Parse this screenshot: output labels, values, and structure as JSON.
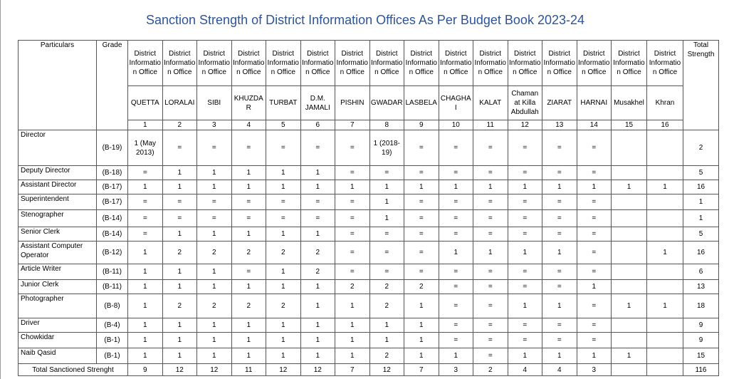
{
  "title": "Sanction Strength of District Information Offices As Per Budget Book 2023-24",
  "table": {
    "headers": {
      "particulars": "Particulars",
      "grade": "Grade",
      "total": "Total Strength",
      "offices": [
        {
          "office": "District Information Office",
          "district": "QUETTA",
          "number": 1
        },
        {
          "office": "District Information Office",
          "district": "LORALAI",
          "number": 2
        },
        {
          "office": "District Information Office",
          "district": "SIBI",
          "number": 3
        },
        {
          "office": "District Information Office",
          "district": "KHUZDAR",
          "number": 4
        },
        {
          "office": "District Information Office",
          "district": "TURBAT",
          "number": 5
        },
        {
          "office": "District Information Office",
          "district": "D.M. JAMALI",
          "number": 6
        },
        {
          "office": "District Information Office",
          "district": "PISHIN",
          "number": 7
        },
        {
          "office": "District Information Office",
          "district": "GWADAR",
          "number": 8
        },
        {
          "office": "District Information Office",
          "district": "LASBELA",
          "number": 9
        },
        {
          "office": "District Information Office",
          "district": "CHAGHAI",
          "number": 10
        },
        {
          "office": "District Information Office",
          "district": "KALAT",
          "number": 11
        },
        {
          "office": "District Information Office",
          "district": "Chaman at Killa Abdullah",
          "number": 12
        },
        {
          "office": "District Information Office",
          "district": "ZIARAT",
          "number": 13
        },
        {
          "office": "District Information Office",
          "district": "HARNAI",
          "number": 14
        },
        {
          "office": "District Information Office",
          "district": "Musakhel",
          "number": 15
        },
        {
          "office": "District Information Office",
          "district": "Khran",
          "number": 16
        }
      ]
    },
    "rows": [
      {
        "particular": "Director",
        "grade": "(B-19)",
        "values": [
          "1 (May 2013)",
          "=",
          "=",
          "=",
          "=",
          "=",
          "=",
          "1 (2018-19)",
          "=",
          "=",
          "=",
          "=",
          "=",
          "=",
          null,
          null
        ],
        "total": 2
      },
      {
        "particular": "Deputy Director",
        "grade": "(B-18)",
        "values": [
          "=",
          1,
          1,
          1,
          1,
          1,
          "=",
          "=",
          "=",
          "=",
          "=",
          "=",
          "=",
          "=",
          null,
          null
        ],
        "total": 5
      },
      {
        "particular": "Assistant Director",
        "grade": "(B-17)",
        "values": [
          1,
          1,
          1,
          1,
          1,
          1,
          1,
          1,
          1,
          1,
          1,
          1,
          1,
          1,
          1,
          1
        ],
        "total": 16
      },
      {
        "particular": "Superintendent",
        "grade": "(B-17)",
        "values": [
          "=",
          "=",
          "=",
          "=",
          "=",
          "=",
          "=",
          1,
          "=",
          "=",
          "=",
          "=",
          "=",
          "=",
          null,
          null
        ],
        "total": 1
      },
      {
        "particular": "Stenographer",
        "grade": "(B-14)",
        "values": [
          "=",
          "=",
          "=",
          "=",
          "=",
          "=",
          "=",
          1,
          "=",
          "=",
          "=",
          "=",
          "=",
          "=",
          null,
          null
        ],
        "total": 1
      },
      {
        "particular": "Senior Clerk",
        "grade": "(B-14)",
        "values": [
          "=",
          1,
          1,
          1,
          1,
          1,
          "=",
          "=",
          "=",
          "=",
          "=",
          "=",
          "=",
          "=",
          null,
          null
        ],
        "total": 5
      },
      {
        "particular": "Assistant Computer Operator",
        "grade": "(B-12)",
        "values": [
          1,
          2,
          2,
          2,
          2,
          2,
          "=",
          "=",
          "=",
          1,
          1,
          1,
          1,
          "=",
          null,
          1
        ],
        "total": 16
      },
      {
        "particular": "Article Writer",
        "grade": "(B-11)",
        "values": [
          1,
          1,
          1,
          "=",
          1,
          2,
          "=",
          "=",
          "=",
          "=",
          "=",
          "=",
          "=",
          "=",
          null,
          null
        ],
        "total": 6
      },
      {
        "particular": "Junior Clerk",
        "grade": "(B-11)",
        "values": [
          1,
          1,
          1,
          1,
          1,
          1,
          2,
          2,
          2,
          "=",
          "=",
          "=",
          "=",
          1,
          null,
          null
        ],
        "total": 13
      },
      {
        "particular": "Photographer",
        "grade": "(B-8)",
        "values": [
          1,
          2,
          2,
          2,
          2,
          1,
          1,
          2,
          1,
          "=",
          "=",
          1,
          1,
          "=",
          1,
          1
        ],
        "total": 18
      },
      {
        "particular": "Driver",
        "grade": "(B-4)",
        "values": [
          1,
          1,
          1,
          1,
          1,
          1,
          1,
          1,
          1,
          "=",
          "=",
          "=",
          "=",
          "=",
          null,
          null
        ],
        "total": 9
      },
      {
        "particular": "Chowkidar",
        "grade": "(B-1)",
        "values": [
          1,
          1,
          1,
          1,
          1,
          1,
          1,
          1,
          1,
          "=",
          "=",
          "=",
          "=",
          "=",
          null,
          null
        ],
        "total": 9
      },
      {
        "particular": "Naib Qasid",
        "grade": "(B-1)",
        "values": [
          1,
          1,
          1,
          1,
          1,
          1,
          1,
          2,
          1,
          1,
          "=",
          1,
          1,
          1,
          1,
          null
        ],
        "total": 15
      }
    ],
    "footer": {
      "label": "Total Sanctioned Strenght",
      "values": [
        9,
        12,
        12,
        11,
        12,
        12,
        7,
        12,
        7,
        3,
        2,
        4,
        4,
        3,
        null,
        null
      ],
      "total": 116
    }
  }
}
